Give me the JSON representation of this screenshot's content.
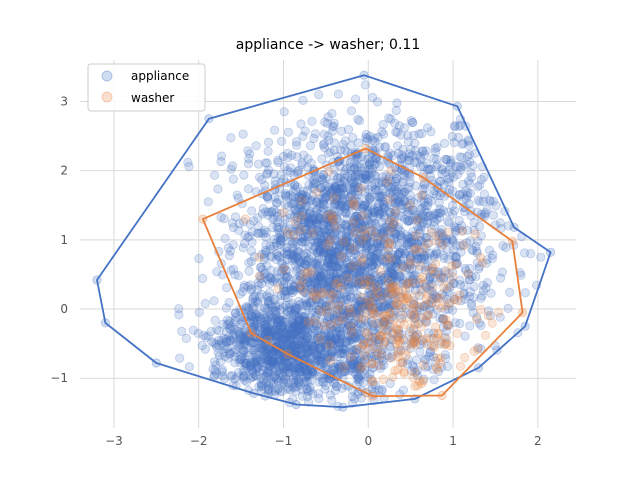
{
  "chart_data": {
    "type": "scatter",
    "title": "appliance -> washer; 0.11",
    "xlabel": "",
    "ylabel": "",
    "xlim": [
      -3.4,
      2.45
    ],
    "ylim": [
      -1.72,
      3.6
    ],
    "xticks": [
      -3,
      -2,
      -1,
      0,
      1,
      2
    ],
    "yticks": [
      -1,
      0,
      1,
      2,
      3
    ],
    "xtick_labels": [
      "−3",
      "−2",
      "−1",
      "0",
      "1",
      "2"
    ],
    "ytick_labels": [
      "−1",
      "0",
      "1",
      "2",
      "3"
    ],
    "grid": true,
    "legend_position": "top-left",
    "series": [
      {
        "name": "appliance",
        "color": "#4472c4",
        "hull": [
          [
            -0.05,
            3.38
          ],
          [
            1.05,
            2.93
          ],
          [
            1.72,
            1.18
          ],
          [
            2.15,
            0.82
          ],
          [
            1.85,
            -0.25
          ],
          [
            1.3,
            -0.85
          ],
          [
            0.55,
            -1.3
          ],
          [
            -0.3,
            -1.42
          ],
          [
            -0.85,
            -1.38
          ],
          [
            -1.35,
            -1.22
          ],
          [
            -2.5,
            -0.78
          ],
          [
            -3.1,
            -0.2
          ],
          [
            -3.2,
            0.42
          ],
          [
            -1.88,
            2.75
          ]
        ],
        "clusters": [
          {
            "center": [
              -0.4,
              0.75
            ],
            "spread": [
              0.55,
              0.75
            ],
            "count": 1400
          },
          {
            "center": [
              -1.15,
              -0.55
            ],
            "spread": [
              0.4,
              0.35
            ],
            "count": 600
          },
          {
            "center": [
              0.5,
              0.8
            ],
            "spread": [
              0.65,
              0.9
            ],
            "count": 700
          },
          {
            "center": [
              0.1,
              1.9
            ],
            "spread": [
              0.8,
              0.45
            ],
            "count": 350
          },
          {
            "center": [
              -0.5,
              -0.7
            ],
            "spread": [
              0.45,
              0.3
            ],
            "count": 400
          }
        ]
      },
      {
        "name": "washer",
        "color": "#e8803c",
        "hull": [
          [
            -0.03,
            2.32
          ],
          [
            0.65,
            1.9
          ],
          [
            1.7,
            0.98
          ],
          [
            1.82,
            -0.05
          ],
          [
            0.87,
            -1.25
          ],
          [
            0.05,
            -1.26
          ],
          [
            -0.95,
            -0.65
          ],
          [
            -1.38,
            -0.35
          ],
          [
            -1.95,
            1.3
          ]
        ],
        "clusters": [
          {
            "center": [
              0.35,
              -0.2
            ],
            "spread": [
              0.35,
              0.45
            ],
            "count": 160
          },
          {
            "center": [
              -0.15,
              0.55
            ],
            "spread": [
              0.6,
              0.75
            ],
            "count": 110
          },
          {
            "center": [
              0.9,
              0.5
            ],
            "spread": [
              0.4,
              0.55
            ],
            "count": 50
          }
        ]
      }
    ]
  }
}
